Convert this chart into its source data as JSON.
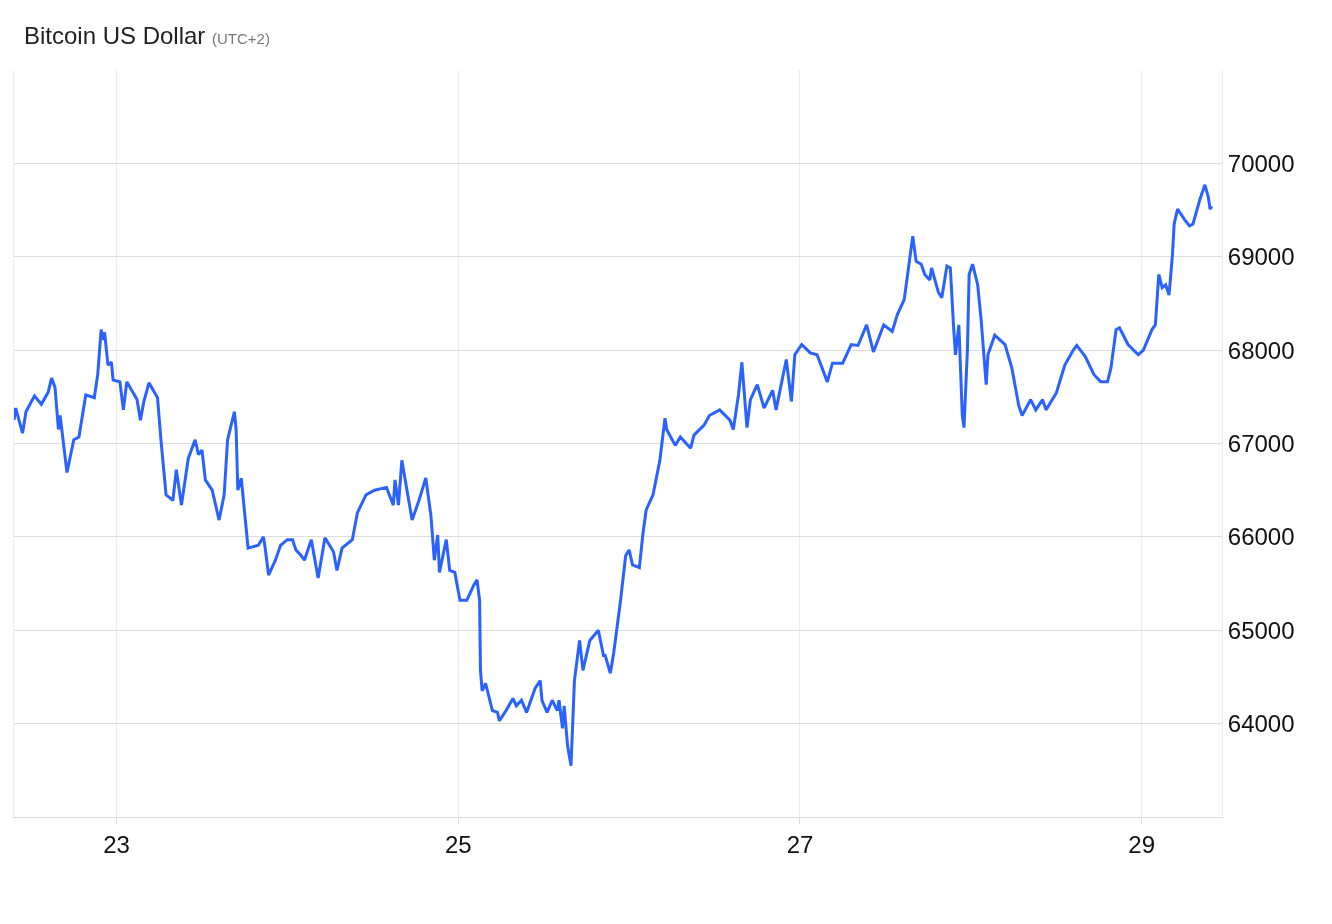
{
  "chart_data": {
    "type": "line",
    "title": "Bitcoin US Dollar",
    "subtitle": "(UTC+2)",
    "x": [
      22.4,
      22.41,
      22.45,
      22.47,
      22.52,
      22.56,
      22.6,
      22.62,
      22.64,
      22.66,
      22.67,
      22.71,
      22.75,
      22.78,
      22.82,
      22.87,
      22.89,
      22.91,
      22.92,
      22.93,
      22.95,
      22.97,
      22.98,
      23.02,
      23.04,
      23.06,
      23.12,
      23.14,
      23.16,
      23.19,
      23.24,
      23.26,
      23.29,
      23.33,
      23.35,
      23.38,
      23.42,
      23.46,
      23.48,
      23.5,
      23.52,
      23.56,
      23.6,
      23.63,
      23.65,
      23.69,
      23.7,
      23.71,
      23.73,
      23.77,
      23.83,
      23.86,
      23.87,
      23.89,
      23.93,
      23.96,
      24.0,
      24.03,
      24.05,
      24.08,
      24.1,
      24.14,
      24.18,
      24.22,
      24.27,
      24.29,
      24.32,
      24.38,
      24.41,
      24.46,
      24.51,
      24.58,
      24.62,
      24.63,
      24.65,
      24.67,
      24.7,
      24.73,
      24.77,
      24.81,
      24.84,
      24.86,
      24.88,
      24.89,
      24.93,
      24.95,
      24.98,
      25.01,
      25.05,
      25.09,
      25.11,
      25.125,
      25.13,
      25.14,
      25.16,
      25.2,
      25.23,
      25.24,
      25.28,
      25.32,
      25.34,
      25.37,
      25.4,
      25.45,
      25.48,
      25.49,
      25.52,
      25.55,
      25.58,
      25.59,
      25.61,
      25.62,
      25.64,
      25.66,
      25.68,
      25.71,
      25.73,
      25.77,
      25.82,
      25.85,
      25.86,
      25.89,
      25.91,
      25.95,
      25.98,
      26.0,
      26.02,
      26.06,
      26.08,
      26.1,
      26.14,
      26.18,
      26.21,
      26.22,
      26.27,
      26.3,
      26.36,
      26.38,
      26.44,
      26.47,
      26.53,
      26.59,
      26.61,
      26.64,
      26.66,
      26.69,
      26.71,
      26.75,
      26.79,
      26.84,
      26.86,
      26.92,
      26.95,
      26.97,
      27.01,
      27.06,
      27.1,
      27.16,
      27.19,
      27.25,
      27.3,
      27.34,
      27.39,
      27.43,
      27.49,
      27.54,
      27.57,
      27.61,
      27.63,
      27.66,
      27.68,
      27.71,
      27.73,
      27.76,
      27.77,
      27.81,
      27.83,
      27.86,
      27.88,
      27.9,
      27.91,
      27.93,
      27.95,
      27.96,
      27.98,
      27.99,
      28.01,
      28.04,
      28.06,
      28.09,
      28.1,
      28.14,
      28.2,
      28.24,
      28.28,
      28.3,
      28.35,
      28.38,
      28.42,
      28.44,
      28.5,
      28.55,
      28.6,
      28.62,
      28.67,
      28.72,
      28.76,
      28.8,
      28.82,
      28.85,
      28.87,
      28.92,
      28.98,
      29.01,
      29.06,
      29.08,
      29.1,
      29.12,
      29.14,
      29.16,
      29.18,
      29.19,
      29.21,
      29.25,
      29.28,
      29.3,
      29.34,
      29.37,
      29.39,
      29.4,
      29.41
    ],
    "series": [
      {
        "color": "#2962ff",
        "values": [
          67250,
          67380,
          67110,
          67340,
          67510,
          67420,
          67550,
          67700,
          67600,
          67150,
          67300,
          66690,
          67040,
          67070,
          67520,
          67490,
          67740,
          68220,
          68110,
          68190,
          67840,
          67870,
          67680,
          67660,
          67360,
          67660,
          67470,
          67250,
          67450,
          67650,
          67490,
          67040,
          66450,
          66390,
          66720,
          66340,
          66840,
          67040,
          66880,
          66930,
          66610,
          66500,
          66180,
          66450,
          67040,
          67340,
          67150,
          66500,
          66630,
          65880,
          65910,
          66000,
          65880,
          65590,
          65750,
          65910,
          65970,
          65970,
          65860,
          65800,
          65750,
          65970,
          65560,
          65990,
          65840,
          65640,
          65880,
          65970,
          66260,
          66450,
          66500,
          66530,
          66340,
          66610,
          66340,
          66820,
          66500,
          66180,
          66390,
          66630,
          66230,
          65750,
          66020,
          65620,
          65970,
          65640,
          65620,
          65320,
          65320,
          65480,
          65540,
          65320,
          64570,
          64350,
          64430,
          64140,
          64120,
          64030,
          64140,
          64270,
          64190,
          64250,
          64120,
          64380,
          64460,
          64250,
          64120,
          64250,
          64140,
          64250,
          63950,
          64190,
          63760,
          63550,
          64460,
          64890,
          64570,
          64890,
          65000,
          64730,
          64730,
          64540,
          64760,
          65320,
          65800,
          65860,
          65700,
          65670,
          66020,
          66290,
          66450,
          66820,
          67270,
          67150,
          66980,
          67070,
          66950,
          67090,
          67200,
          67300,
          67360,
          67250,
          67150,
          67520,
          67870,
          67170,
          67470,
          67630,
          67380,
          67570,
          67360,
          67900,
          67450,
          67950,
          68060,
          67970,
          67950,
          67660,
          67860,
          67860,
          68060,
          68050,
          68270,
          67980,
          68270,
          68200,
          68380,
          68540,
          68810,
          69220,
          68950,
          68920,
          68810,
          68750,
          68880,
          68620,
          68560,
          68900,
          68880,
          68220,
          67950,
          68270,
          67300,
          67170,
          68000,
          68810,
          68920,
          68700,
          68330,
          67630,
          67950,
          68160,
          68060,
          67810,
          67410,
          67300,
          67470,
          67360,
          67470,
          67360,
          67540,
          67840,
          68000,
          68050,
          67930,
          67740,
          67660,
          67660,
          67810,
          68220,
          68240,
          68060,
          67950,
          68000,
          68220,
          68270,
          68810,
          68670,
          68700,
          68590,
          69020,
          69350,
          69510,
          69400,
          69330,
          69350,
          69610,
          69770,
          69640,
          69510,
          69540
        ]
      }
    ],
    "xlim": [
      22.4,
      29.47
    ],
    "xticks": [
      23,
      25,
      27,
      29
    ],
    "ylim": [
      63000,
      71000
    ],
    "yticks": [
      64000,
      65000,
      66000,
      67000,
      68000,
      69000,
      70000
    ],
    "grid": true,
    "marker": "none",
    "line_style": "solid"
  }
}
